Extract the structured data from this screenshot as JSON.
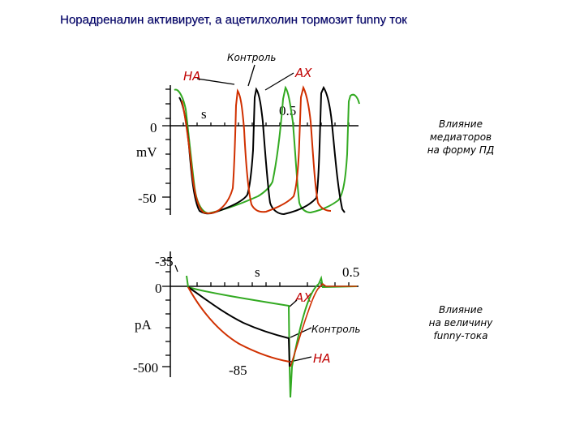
{
  "title": "Норадреналин активирует, а ацетилхолин тормозит funny ток",
  "top_panel": {
    "label_na": "НА",
    "label_control": "Контроль",
    "label_ach": "АХ",
    "time_unit": "s",
    "time_tick": "0.5",
    "y_zero": "0",
    "y_unit": "mV",
    "y_min": "-50",
    "caption": [
      "Влияние",
      "медиаторов",
      "на форму ПД"
    ]
  },
  "bottom_panel": {
    "y_top": "-35",
    "y_zero": "0",
    "y_unit": "pA",
    "y_min": "-500",
    "time_unit": "s",
    "time_tick": "0.5",
    "holding": "-85",
    "label_ach": "АХ",
    "label_control": "Контроль",
    "label_na": "НА",
    "caption": [
      "Влияние",
      "на величину",
      "funny-тока"
    ]
  },
  "colors": {
    "title": "#000066",
    "noradrenaline": "#d03000",
    "control": "#000000",
    "acetylcholine": "#33aa22",
    "label_red": "#c00000"
  }
}
